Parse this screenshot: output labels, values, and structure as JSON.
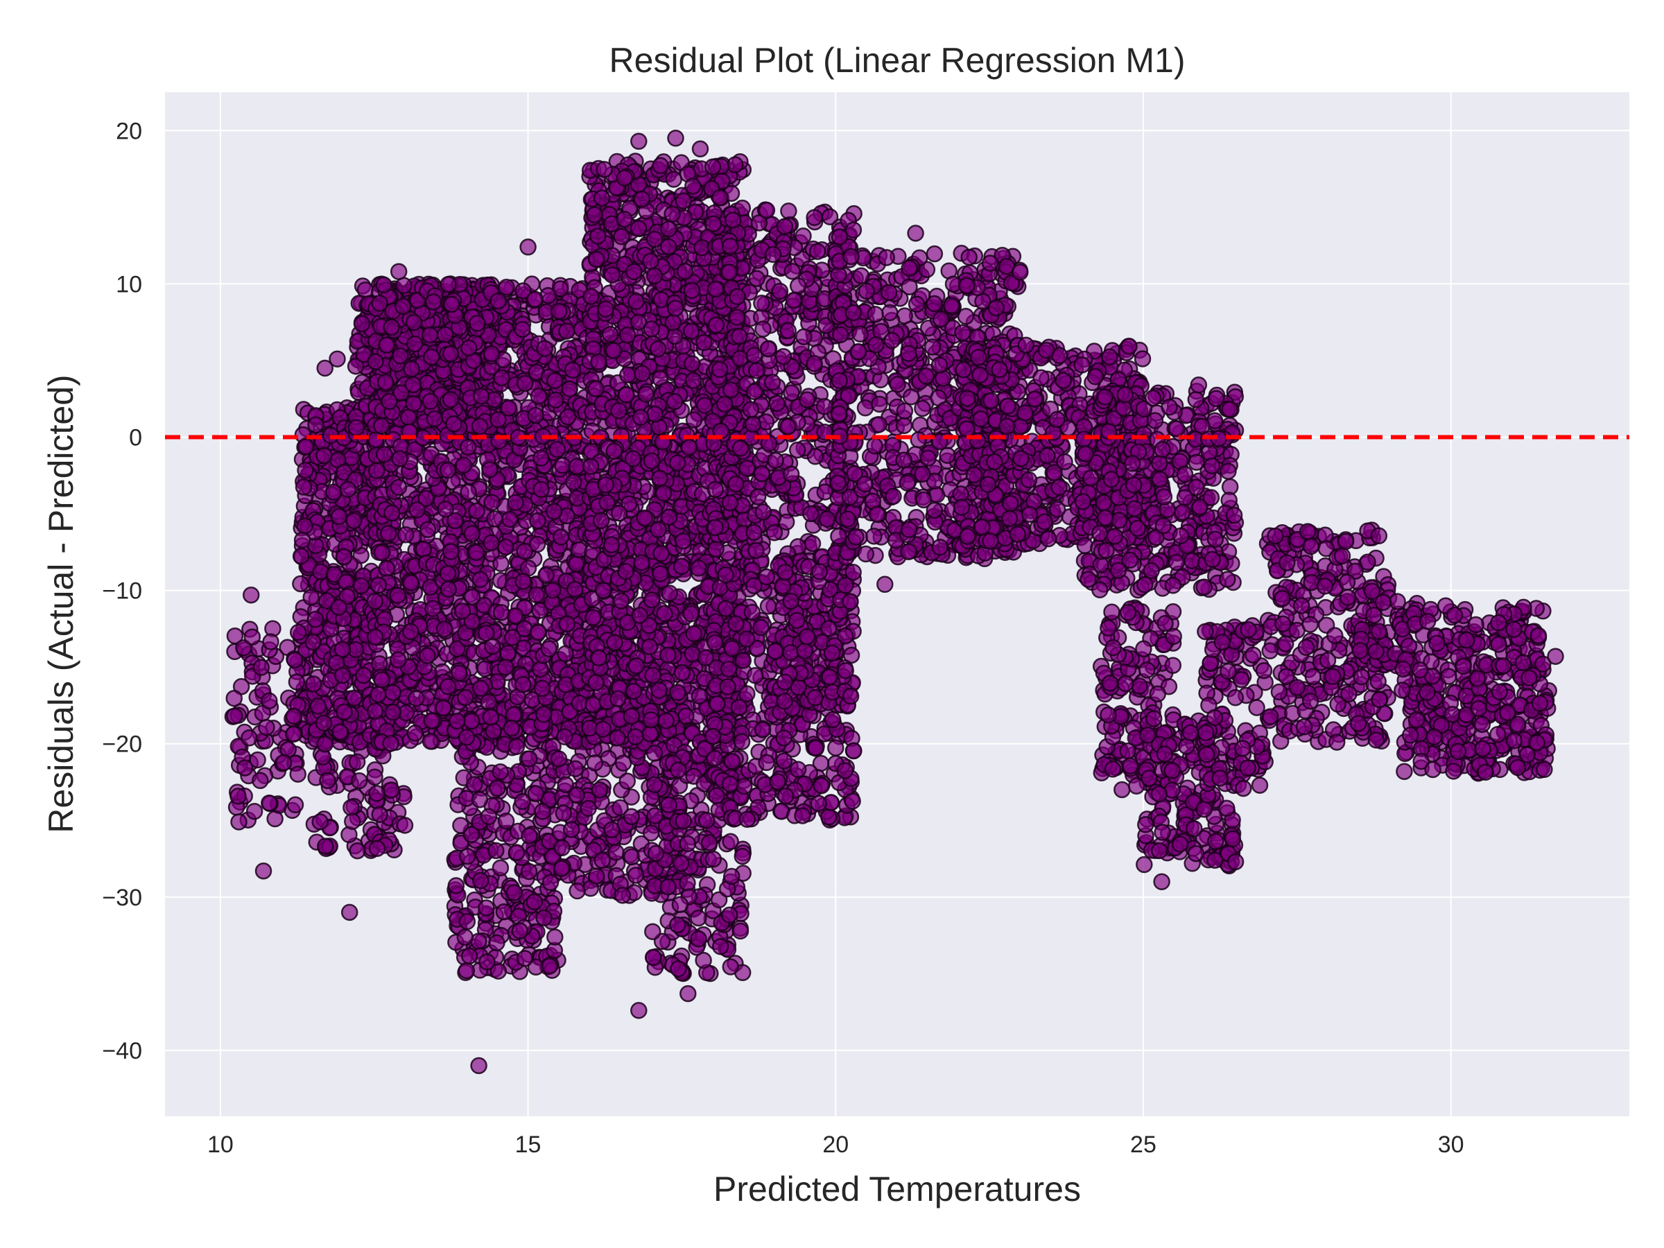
{
  "chart_data": {
    "type": "scatter",
    "title": "Residual Plot (Linear Regression M1)",
    "xlabel": "Predicted Temperatures",
    "ylabel": "Residuals (Actual - Predicted)",
    "xlim": [
      9.1,
      32.9
    ],
    "ylim": [
      -44.3,
      22.5
    ],
    "xticks": [
      10,
      15,
      20,
      25,
      30
    ],
    "yticks": [
      20,
      10,
      0,
      -10,
      -20,
      -30,
      -40
    ],
    "xtick_labels": [
      "10",
      "15",
      "20",
      "25",
      "30"
    ],
    "ytick_labels": [
      "20",
      "10",
      "0",
      "−10",
      "−20",
      "−30",
      "−40"
    ],
    "grid": true,
    "reference_line": {
      "y": 0,
      "style": "dashed",
      "color": "#ff0000"
    },
    "colors": {
      "background": "#eaeaf2",
      "grid": "#ffffff",
      "point_fill": "#800080",
      "point_edge": "#1a001a",
      "point_alpha": 0.65
    },
    "series": [
      {
        "marker": "circle",
        "clusters": [
          {
            "x": [
              11.3,
              12.5
            ],
            "y": [
              -20,
              2
            ],
            "n": 500
          },
          {
            "x": [
              10.2,
              11.3
            ],
            "y": [
              -25,
              -12
            ],
            "n": 90
          },
          {
            "x": [
              11.5,
              13
            ],
            "y": [
              -27,
              -17
            ],
            "n": 110
          },
          {
            "x": [
              12.2,
              14.5
            ],
            "y": [
              0,
              10
            ],
            "n": 400
          },
          {
            "x": [
              12.5,
              16
            ],
            "y": [
              -20,
              10
            ],
            "n": 1700
          },
          {
            "x": [
              13.8,
              15.5
            ],
            "y": [
              -35,
              -18
            ],
            "n": 300
          },
          {
            "x": [
              15.5,
              17.5
            ],
            "y": [
              -30,
              -15
            ],
            "n": 260
          },
          {
            "x": [
              16,
              18.5
            ],
            "y": [
              -20,
              18
            ],
            "n": 1700
          },
          {
            "x": [
              17,
              18.5
            ],
            "y": [
              -35,
              -20
            ],
            "n": 200
          },
          {
            "x": [
              18,
              20.3
            ],
            "y": [
              -25,
              15
            ],
            "n": 900
          },
          {
            "x": [
              19,
              20.3
            ],
            "y": [
              -18,
              -8
            ],
            "n": 120
          },
          {
            "x": [
              20,
              23
            ],
            "y": [
              -8,
              12
            ],
            "n": 650
          },
          {
            "x": [
              22,
              25
            ],
            "y": [
              -7,
              6
            ],
            "n": 500
          },
          {
            "x": [
              24,
              26.5
            ],
            "y": [
              -10,
              3
            ],
            "n": 400
          },
          {
            "x": [
              24.3,
              25.5
            ],
            "y": [
              -23,
              -11
            ],
            "n": 140
          },
          {
            "x": [
              25,
              26.5
            ],
            "y": [
              -28,
              -18
            ],
            "n": 160
          },
          {
            "x": [
              26,
              27
            ],
            "y": [
              -23,
              -12
            ],
            "n": 110
          },
          {
            "x": [
              27,
              29
            ],
            "y": [
              -20,
              -6
            ],
            "n": 260
          },
          {
            "x": [
              28.5,
              29.5
            ],
            "y": [
              -15,
              -10
            ],
            "n": 60
          },
          {
            "x": [
              29.2,
              31.6
            ],
            "y": [
              -22,
              -11
            ],
            "n": 380
          }
        ],
        "outliers": [
          [
            10.7,
            -28.3
          ],
          [
            10.3,
            -25.1
          ],
          [
            12.1,
            -31
          ],
          [
            14.2,
            -41
          ],
          [
            16.8,
            -37.4
          ],
          [
            17.6,
            -36.3
          ],
          [
            11.7,
            4.5
          ],
          [
            11.9,
            5.1
          ],
          [
            12.3,
            7.4
          ],
          [
            12.9,
            10.8
          ],
          [
            15,
            12.4
          ],
          [
            16.2,
            15.6
          ],
          [
            16.8,
            19.3
          ],
          [
            17.4,
            19.5
          ],
          [
            17.8,
            18.8
          ],
          [
            21.3,
            13.3
          ],
          [
            10.5,
            -10.3
          ],
          [
            15.8,
            -29.6
          ],
          [
            25.3,
            -29
          ],
          [
            26.5,
            -27.7
          ],
          [
            31.7,
            -14.3
          ],
          [
            25.9,
            3.4
          ],
          [
            20.8,
            -9.6
          ]
        ]
      }
    ]
  }
}
